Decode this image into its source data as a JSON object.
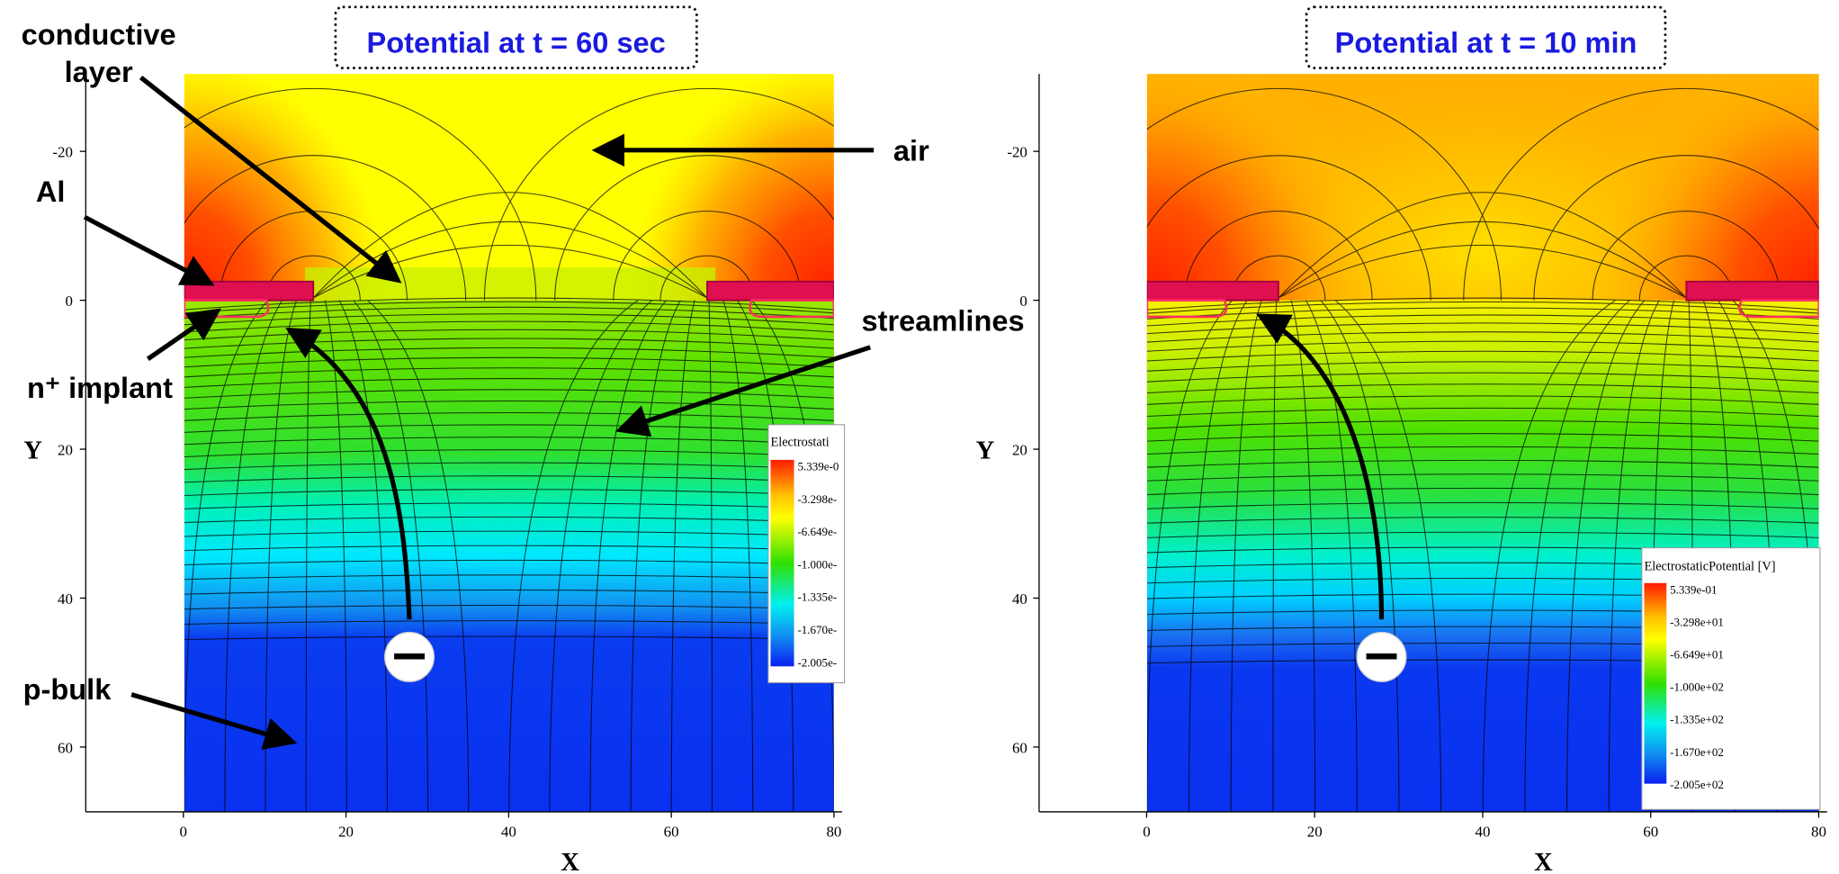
{
  "annotations": {
    "conductive_layer": [
      "conductive",
      "layer"
    ],
    "air": "air",
    "al": "Al",
    "streamlines": "streamlines",
    "n_implant": "n⁺ implant",
    "p_bulk": "p-bulk"
  },
  "panels": [
    {
      "title": "Potential at t = 60 sec",
      "x_label": "X",
      "y_label": "Y",
      "xlim": [
        -12,
        81
      ],
      "ylim": [
        -30.4,
        68.7
      ],
      "y_inverted": true,
      "xticks": [
        0,
        20,
        40,
        60,
        80
      ],
      "yticks": [
        -20,
        0,
        20,
        40,
        60
      ],
      "colorbar": {
        "title": "Electrostati",
        "labels": [
          "5.339e-0",
          "-3.298e-",
          "-6.649e-",
          "-1.000e-",
          "-1.335e-",
          "-1.670e-",
          "-2.005e-"
        ]
      }
    },
    {
      "title": "Potential at t = 10 min",
      "x_label": "X",
      "y_label": "Y",
      "xlim": [
        -12.8,
        81
      ],
      "ylim": [
        -30.4,
        68.7
      ],
      "y_inverted": true,
      "xticks": [
        0,
        20,
        40,
        60,
        80
      ],
      "yticks": [
        -20,
        0,
        20,
        40,
        60
      ],
      "colorbar": {
        "title": "ElectrostaticPotential [V]",
        "labels": [
          "5.339e-01",
          "-3.298e+01",
          "-6.649e+01",
          "-1.000e+02",
          "-1.335e+02",
          "-1.670e+02",
          "-2.005e+02"
        ]
      }
    }
  ]
}
